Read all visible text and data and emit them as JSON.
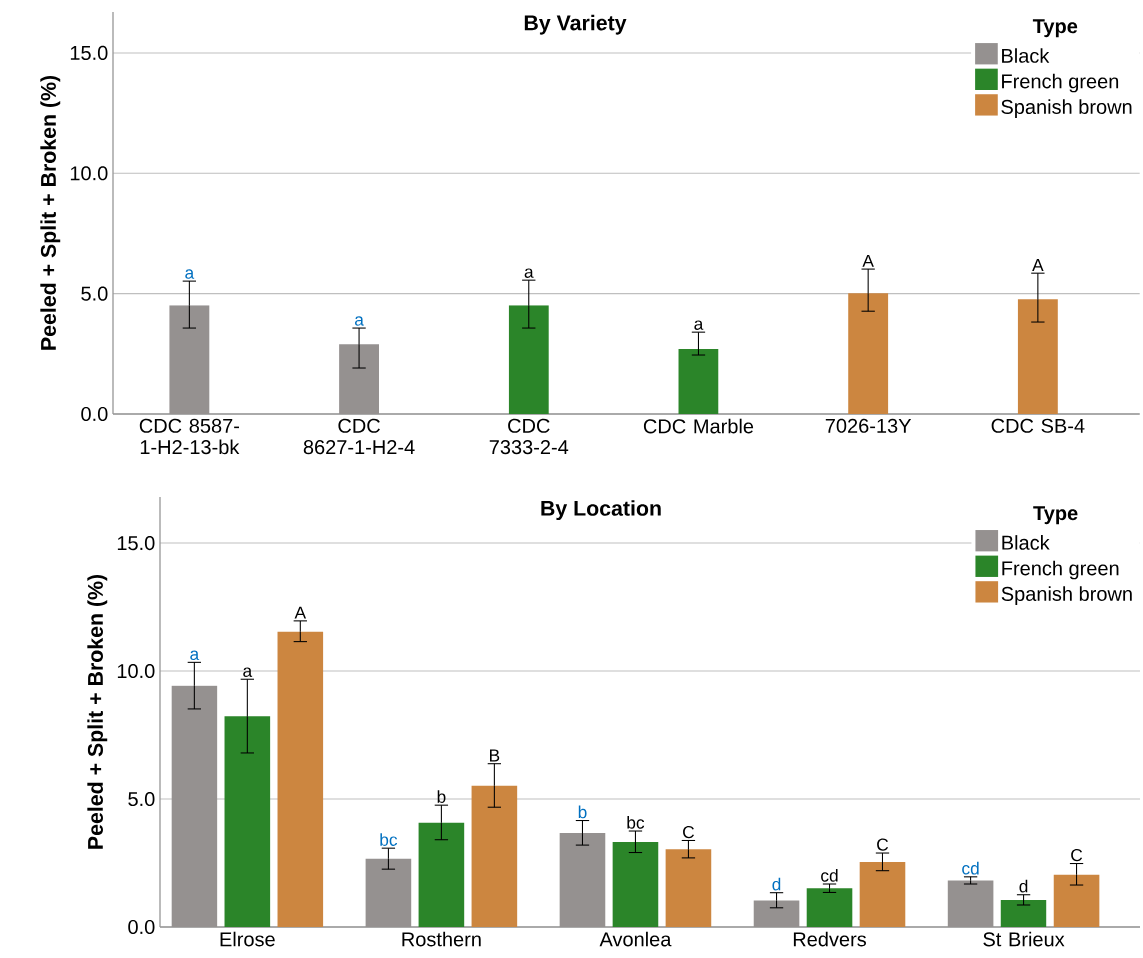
{
  "chart_data": [
    {
      "type": "bar",
      "title": "By Variety",
      "ylabel": "Peeled + Split + Broken (%)",
      "legend_title": "Type",
      "legend": "top right",
      "grid": "y",
      "categories": [
        "CDC 8587-1-H2-13-bk",
        "CDC 8627-1-H2-4",
        "CDC 7333-2-4",
        "CDC Marble",
        "7026-13Y",
        "CDC SB-4"
      ],
      "ylim": [
        0,
        16.7
      ],
      "yticks": [
        {
          "value": 0,
          "label": "0.0"
        },
        {
          "value": 5,
          "label": "5.0"
        },
        {
          "value": 10,
          "label": "10.0"
        },
        {
          "value": 15,
          "label": "15.0"
        }
      ],
      "series": [
        {
          "name": "Black",
          "color": "#959190",
          "values": [
            4.52,
            2.9,
            null,
            null,
            null,
            null
          ],
          "errors": [
            [
              3.57,
              5.52
            ],
            [
              1.91,
              3.57
            ],
            null,
            null,
            null,
            null
          ],
          "value_labels": [
            "a",
            "a",
            null,
            null,
            null,
            null
          ]
        },
        {
          "name": "French green",
          "color": "#2b8529",
          "values": [
            null,
            null,
            4.52,
            2.7,
            null,
            null
          ],
          "errors": [
            null,
            null,
            [
              3.57,
              5.56
            ],
            [
              2.45,
              3.4
            ],
            null,
            null
          ],
          "value_labels": [
            null,
            null,
            "a",
            "a",
            null,
            null
          ]
        },
        {
          "name": "Spanish brown",
          "color": "#cc8640",
          "values": [
            null,
            null,
            null,
            null,
            5.02,
            4.77
          ],
          "errors": [
            null,
            null,
            null,
            null,
            [
              4.27,
              6.02
            ],
            [
              3.82,
              5.85
            ]
          ],
          "value_labels": [
            null,
            null,
            null,
            null,
            "A",
            "A"
          ]
        }
      ]
    },
    {
      "type": "bar",
      "title": "By Location",
      "ylabel": "Peeled + Split + Broken (%)",
      "legend_title": "Type",
      "legend": "top right",
      "grid": "y",
      "categories": [
        "Elrose",
        "Rosthern",
        "Avonlea",
        "Redvers",
        "St Brieux"
      ],
      "ylim": [
        0,
        16.8
      ],
      "yticks": [
        {
          "value": 0,
          "label": "0.0"
        },
        {
          "value": 5,
          "label": "5.0"
        },
        {
          "value": 10,
          "label": "10.0"
        },
        {
          "value": 15,
          "label": "15.0"
        }
      ],
      "series": [
        {
          "name": "Black",
          "color": "#959190",
          "values": [
            9.43,
            2.67,
            3.67,
            1.04,
            1.82
          ],
          "errors": [
            [
              8.52,
              10.34
            ],
            [
              2.26,
              3.08
            ],
            [
              3.2,
              4.16
            ],
            [
              0.75,
              1.34
            ],
            [
              1.68,
              1.96
            ]
          ],
          "value_labels": [
            "a",
            "bc",
            "b",
            "d",
            "cd"
          ]
        },
        {
          "name": "French green",
          "color": "#2b8529",
          "values": [
            8.23,
            4.07,
            3.32,
            1.51,
            1.05
          ],
          "errors": [
            [
              6.8,
              9.68
            ],
            [
              3.41,
              4.76
            ],
            [
              2.91,
              3.75
            ],
            [
              1.35,
              1.68
            ],
            [
              0.86,
              1.26
            ]
          ],
          "value_labels": [
            "a",
            "b",
            "bc",
            "cd",
            "d"
          ]
        },
        {
          "name": "Spanish brown",
          "color": "#cc8640",
          "values": [
            11.54,
            5.52,
            3.04,
            2.54,
            2.04
          ],
          "errors": [
            [
              11.15,
              11.96
            ],
            [
              4.68,
              6.38
            ],
            [
              2.7,
              3.38
            ],
            [
              2.2,
              2.89
            ],
            [
              1.64,
              2.48
            ]
          ],
          "value_labels": [
            "A",
            "B",
            "C",
            "C",
            "C"
          ]
        }
      ]
    }
  ]
}
